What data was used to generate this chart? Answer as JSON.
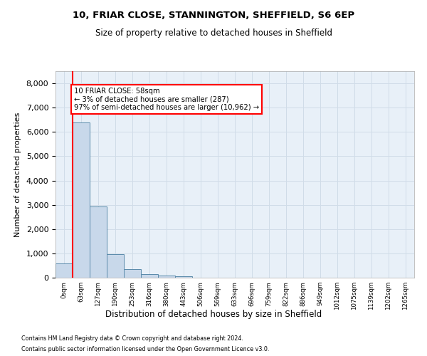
{
  "title1": "10, FRIAR CLOSE, STANNINGTON, SHEFFIELD, S6 6EP",
  "title2": "Size of property relative to detached houses in Sheffield",
  "xlabel": "Distribution of detached houses by size in Sheffield",
  "ylabel": "Number of detached properties",
  "bar_labels": [
    "0sqm",
    "63sqm",
    "127sqm",
    "190sqm",
    "253sqm",
    "316sqm",
    "380sqm",
    "443sqm",
    "506sqm",
    "569sqm",
    "633sqm",
    "696sqm",
    "759sqm",
    "822sqm",
    "886sqm",
    "949sqm",
    "1012sqm",
    "1075sqm",
    "1139sqm",
    "1202sqm",
    "1265sqm"
  ],
  "bar_values": [
    600,
    6400,
    2920,
    970,
    360,
    155,
    100,
    70,
    0,
    0,
    0,
    0,
    0,
    0,
    0,
    0,
    0,
    0,
    0,
    0,
    0
  ],
  "bar_color": "#c8d8ea",
  "bar_edge_color": "#5a8aaa",
  "annotation_line1": "10 FRIAR CLOSE: 58sqm",
  "annotation_line2": "← 3% of detached houses are smaller (287)",
  "annotation_line3": "97% of semi-detached houses are larger (10,962) →",
  "ylim": [
    0,
    8500
  ],
  "yticks": [
    0,
    1000,
    2000,
    3000,
    4000,
    5000,
    6000,
    7000,
    8000
  ],
  "grid_color": "#d0dce8",
  "background_color": "#e8f0f8",
  "footer1": "Contains HM Land Registry data © Crown copyright and database right 2024.",
  "footer2": "Contains public sector information licensed under the Open Government Licence v3.0."
}
